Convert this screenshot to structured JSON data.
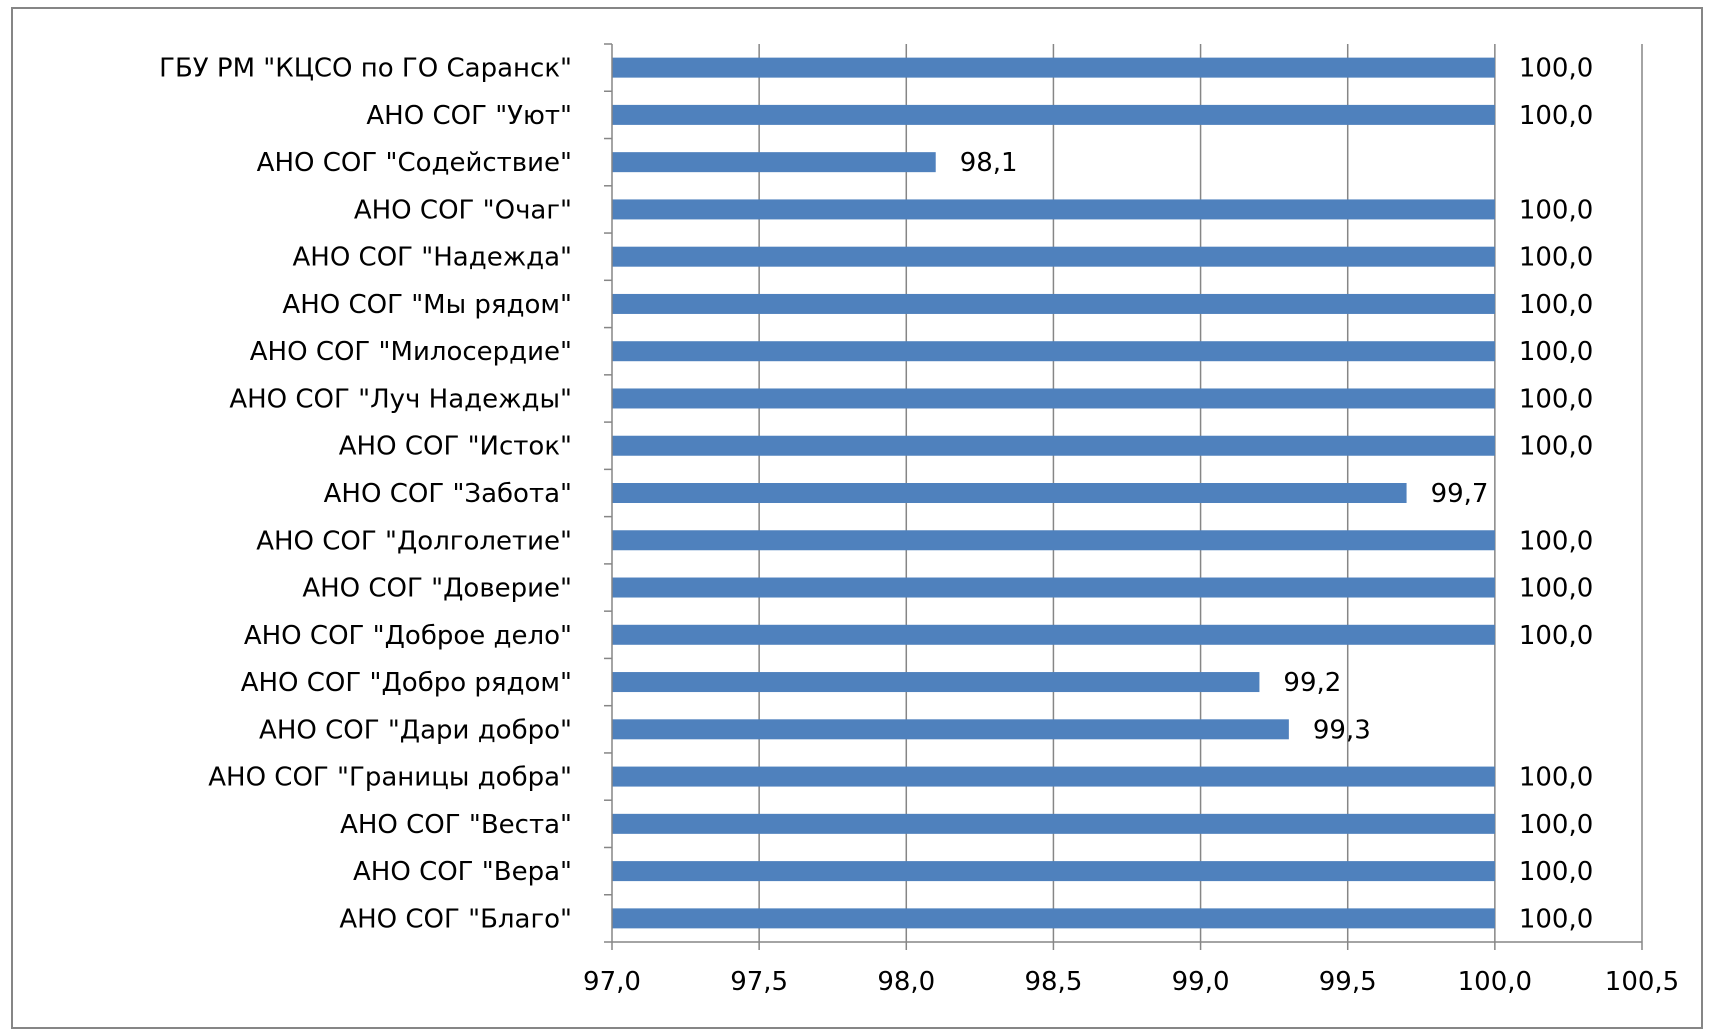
{
  "chart_data": {
    "type": "bar",
    "orientation": "horizontal",
    "categories": [
      "ГБУ РМ \"КЦСО по ГО Саранск\"",
      "АНО СОГ \"Уют\"",
      "АНО СОГ \"Содействие\"",
      "АНО СОГ \"Очаг\"",
      "АНО СОГ \"Надежда\"",
      "АНО СОГ \"Мы рядом\"",
      "АНО СОГ \"Милосердие\"",
      "АНО СОГ \"Луч Надежды\"",
      "АНО СОГ \"Исток\"",
      "АНО СОГ \"Забота\"",
      "АНО СОГ \"Долголетие\"",
      "АНО СОГ \"Доверие\"",
      "АНО СОГ \"Доброе дело\"",
      "АНО СОГ \"Добро рядом\"",
      "АНО СОГ \"Дари добро\"",
      "АНО СОГ \"Границы добра\"",
      "АНО СОГ \"Веста\"",
      "АНО СОГ \"Вера\"",
      "АНО СОГ \"Благо\""
    ],
    "values": [
      100.0,
      100.0,
      98.1,
      100.0,
      100.0,
      100.0,
      100.0,
      100.0,
      100.0,
      99.7,
      100.0,
      100.0,
      100.0,
      99.2,
      99.3,
      100.0,
      100.0,
      100.0,
      100.0
    ],
    "value_labels": [
      "100,0",
      "100,0",
      "98,1",
      "100,0",
      "100,0",
      "100,0",
      "100,0",
      "100,0",
      "100,0",
      "99,7",
      "100,0",
      "100,0",
      "100,0",
      "99,2",
      "99,3",
      "100,0",
      "100,0",
      "100,0",
      "100,0"
    ],
    "xlim": [
      97.0,
      100.5
    ],
    "xticks": [
      97.0,
      97.5,
      98.0,
      98.5,
      99.0,
      99.5,
      100.0,
      100.5
    ],
    "xtick_labels": [
      "97,0",
      "97,5",
      "98,0",
      "98,5",
      "99,0",
      "99,5",
      "100,0",
      "100,5"
    ],
    "title": "",
    "xlabel": "",
    "ylabel": "",
    "grid": "vertical",
    "legend": "none",
    "colors": {
      "bar": "#4F81BD",
      "gridline": "#868686",
      "axis": "#868686",
      "frame": "#868686"
    }
  }
}
